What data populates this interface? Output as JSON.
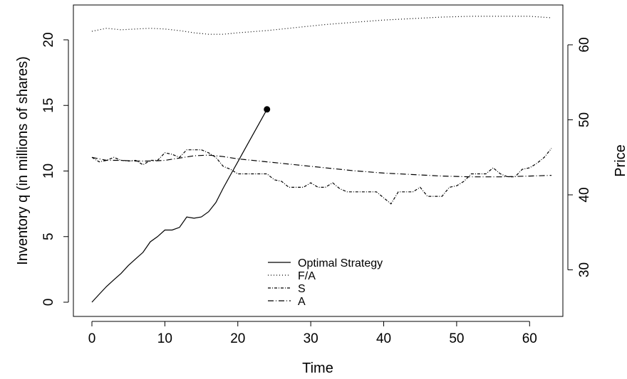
{
  "chart_data": {
    "type": "line",
    "title": "",
    "xlabel": "Time",
    "ylabel": "Inventory q (in millions of shares)",
    "y2label": "Price",
    "xlim": [
      0,
      63
    ],
    "ylim": [
      0,
      21
    ],
    "y2lim": [
      25,
      65
    ],
    "x_ticks": [
      0,
      10,
      20,
      30,
      40,
      50,
      60
    ],
    "y_ticks": [
      0,
      5,
      10,
      15,
      20
    ],
    "y2_ticks": [
      30,
      40,
      50,
      60
    ],
    "grid": false,
    "legend": {
      "placement": "bottom-center"
    },
    "series": [
      {
        "name": "Optimal Strategy",
        "axis": "left",
        "line_style": "solid",
        "end_marker": "filled-circle",
        "points": [
          [
            0,
            0
          ],
          [
            1,
            0.6
          ],
          [
            2,
            1.2
          ],
          [
            3,
            1.7
          ],
          [
            4,
            2.2
          ],
          [
            5,
            2.8
          ],
          [
            6,
            3.3
          ],
          [
            7,
            3.8
          ],
          [
            8,
            4.6
          ],
          [
            9,
            5.0
          ],
          [
            10,
            5.5
          ],
          [
            11,
            5.5
          ],
          [
            12,
            5.7
          ],
          [
            13,
            6.5
          ],
          [
            14,
            6.4
          ],
          [
            15,
            6.5
          ],
          [
            16,
            6.9
          ],
          [
            17,
            7.6
          ],
          [
            18,
            8.7
          ],
          [
            19,
            9.7
          ],
          [
            20,
            10.7
          ],
          [
            21,
            11.7
          ],
          [
            22,
            12.7
          ],
          [
            23,
            13.7
          ],
          [
            24,
            14.7
          ]
        ]
      },
      {
        "name": "F/A",
        "axis": "right",
        "line_style": "dotted",
        "points": [
          [
            0,
            61.8
          ],
          [
            2,
            62.2
          ],
          [
            4,
            62.0
          ],
          [
            6,
            62.1
          ],
          [
            8,
            62.2
          ],
          [
            10,
            62.1
          ],
          [
            12,
            61.9
          ],
          [
            14,
            61.6
          ],
          [
            16,
            61.4
          ],
          [
            18,
            61.4
          ],
          [
            20,
            61.6
          ],
          [
            24,
            61.9
          ],
          [
            28,
            62.3
          ],
          [
            32,
            62.7
          ],
          [
            36,
            63.0
          ],
          [
            40,
            63.3
          ],
          [
            44,
            63.5
          ],
          [
            48,
            63.7
          ],
          [
            52,
            63.8
          ],
          [
            56,
            63.8
          ],
          [
            60,
            63.8
          ],
          [
            63,
            63.6
          ]
        ]
      },
      {
        "name": "S",
        "axis": "right",
        "line_style": "dash-dot",
        "points": [
          [
            0,
            45.0
          ],
          [
            1,
            44.4
          ],
          [
            2,
            44.6
          ],
          [
            3,
            45.0
          ],
          [
            4,
            44.6
          ],
          [
            5,
            44.5
          ],
          [
            6,
            44.6
          ],
          [
            7,
            44.0
          ],
          [
            8,
            44.6
          ],
          [
            9,
            44.6
          ],
          [
            10,
            45.6
          ],
          [
            11,
            45.4
          ],
          [
            12,
            45.0
          ],
          [
            13,
            46.0
          ],
          [
            14,
            46.0
          ],
          [
            15,
            46.0
          ],
          [
            16,
            45.6
          ],
          [
            17,
            45.0
          ],
          [
            18,
            43.8
          ],
          [
            19,
            43.4
          ],
          [
            20,
            42.8
          ],
          [
            21,
            42.8
          ],
          [
            22,
            42.8
          ],
          [
            23,
            42.8
          ],
          [
            24,
            42.8
          ],
          [
            25,
            42.0
          ],
          [
            26,
            41.8
          ],
          [
            27,
            41.0
          ],
          [
            28,
            41.0
          ],
          [
            29,
            41.0
          ],
          [
            30,
            41.6
          ],
          [
            31,
            41.0
          ],
          [
            32,
            41.0
          ],
          [
            33,
            41.6
          ],
          [
            34,
            40.8
          ],
          [
            35,
            40.4
          ],
          [
            36,
            40.4
          ],
          [
            37,
            40.4
          ],
          [
            38,
            40.4
          ],
          [
            39,
            40.4
          ],
          [
            40,
            39.6
          ],
          [
            41,
            38.8
          ],
          [
            42,
            40.4
          ],
          [
            43,
            40.4
          ],
          [
            44,
            40.4
          ],
          [
            45,
            41.0
          ],
          [
            46,
            39.8
          ],
          [
            47,
            39.8
          ],
          [
            48,
            39.8
          ],
          [
            49,
            41.0
          ],
          [
            50,
            41.2
          ],
          [
            51,
            41.8
          ],
          [
            52,
            42.8
          ],
          [
            53,
            42.8
          ],
          [
            54,
            42.8
          ],
          [
            55,
            43.6
          ],
          [
            56,
            42.8
          ],
          [
            57,
            42.4
          ],
          [
            58,
            42.4
          ],
          [
            59,
            43.4
          ],
          [
            60,
            43.6
          ],
          [
            61,
            44.2
          ],
          [
            62,
            45.0
          ],
          [
            63,
            46.2
          ]
        ]
      },
      {
        "name": "A",
        "axis": "right",
        "line_style": "long-dash-dot",
        "points": [
          [
            0,
            45.0
          ],
          [
            2,
            44.6
          ],
          [
            4,
            44.6
          ],
          [
            6,
            44.5
          ],
          [
            8,
            44.5
          ],
          [
            10,
            44.6
          ],
          [
            12,
            44.9
          ],
          [
            14,
            45.2
          ],
          [
            16,
            45.3
          ],
          [
            18,
            45.1
          ],
          [
            20,
            44.8
          ],
          [
            24,
            44.4
          ],
          [
            28,
            44.0
          ],
          [
            32,
            43.6
          ],
          [
            36,
            43.2
          ],
          [
            40,
            42.9
          ],
          [
            44,
            42.7
          ],
          [
            48,
            42.5
          ],
          [
            52,
            42.4
          ],
          [
            56,
            42.4
          ],
          [
            60,
            42.5
          ],
          [
            63,
            42.6
          ]
        ]
      }
    ]
  }
}
